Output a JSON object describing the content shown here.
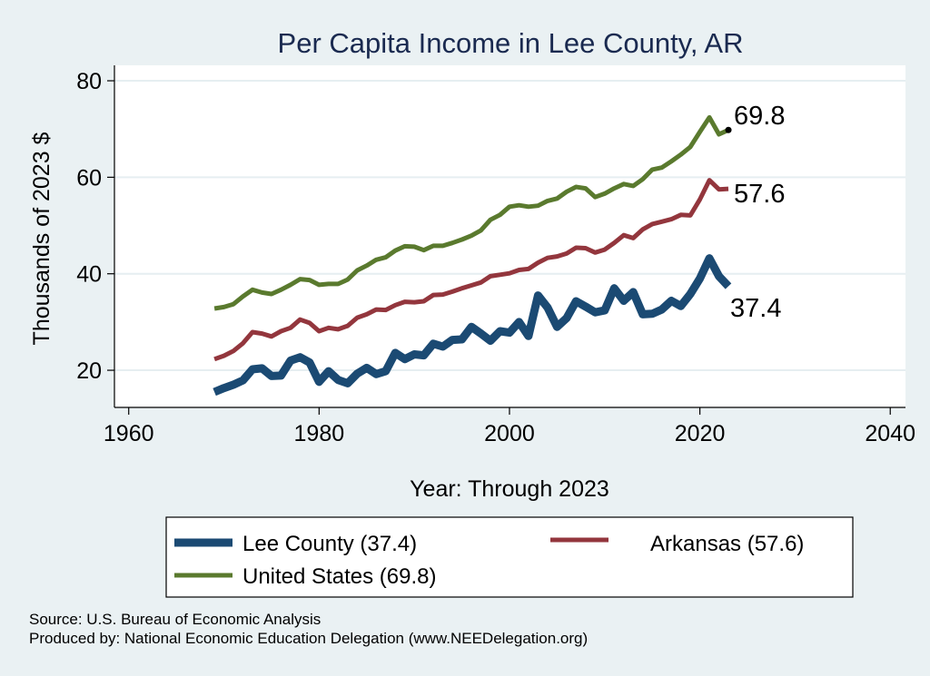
{
  "chart_data": {
    "type": "line",
    "title": "Per Capita Income in Lee County, AR",
    "xlabel": "Year: Through 2023",
    "ylabel": "Thousands of 2023 $",
    "xlim": [
      1958.5,
      2041.6
    ],
    "ylim": [
      12.3,
      83.2
    ],
    "xticks": [
      1960,
      1980,
      2000,
      2020,
      2040
    ],
    "yticks": [
      20,
      40,
      60,
      80
    ],
    "grid": "horizontal",
    "legend_position": "bottom",
    "x": [
      1969,
      1970,
      1971,
      1972,
      1973,
      1974,
      1975,
      1976,
      1977,
      1978,
      1979,
      1980,
      1981,
      1982,
      1983,
      1984,
      1985,
      1986,
      1987,
      1988,
      1989,
      1990,
      1991,
      1992,
      1993,
      1994,
      1995,
      1996,
      1997,
      1998,
      1999,
      2000,
      2001,
      2002,
      2003,
      2004,
      2005,
      2006,
      2007,
      2008,
      2009,
      2010,
      2011,
      2012,
      2013,
      2014,
      2015,
      2016,
      2017,
      2018,
      2019,
      2020,
      2021,
      2022,
      2023
    ],
    "series": [
      {
        "name": "Lee County",
        "legend_label": "Lee County (37.4)",
        "end_label": "37.4",
        "color": "#1b4a73",
        "values": [
          15.5,
          16.3,
          17.0,
          17.9,
          20.2,
          20.4,
          18.8,
          18.9,
          22.0,
          22.7,
          21.6,
          17.6,
          19.8,
          18.0,
          17.3,
          19.3,
          20.5,
          19.2,
          19.8,
          23.6,
          22.3,
          23.3,
          23.1,
          25.5,
          24.9,
          26.3,
          26.4,
          29.0,
          27.6,
          26.1,
          28.1,
          27.8,
          30.0,
          27.1,
          35.5,
          33.0,
          29.0,
          30.8,
          34.3,
          33.2,
          32.0,
          32.4,
          37.0,
          34.4,
          36.2,
          31.6,
          31.7,
          32.6,
          34.4,
          33.3,
          35.8,
          39.0,
          43.2,
          39.5,
          37.4
        ]
      },
      {
        "name": "Arkansas",
        "legend_label": "Arkansas (57.6)",
        "end_label": "57.6",
        "color": "#93363d",
        "values": [
          22.3,
          23.0,
          24.0,
          25.6,
          27.9,
          27.6,
          27.0,
          28.1,
          28.8,
          30.5,
          29.8,
          28.1,
          28.8,
          28.5,
          29.2,
          30.9,
          31.6,
          32.6,
          32.5,
          33.5,
          34.2,
          34.1,
          34.3,
          35.6,
          35.7,
          36.3,
          37.0,
          37.6,
          38.2,
          39.5,
          39.8,
          40.1,
          40.8,
          41.0,
          42.3,
          43.3,
          43.6,
          44.2,
          45.4,
          45.3,
          44.4,
          45.0,
          46.4,
          48.0,
          47.4,
          49.2,
          50.3,
          50.8,
          51.3,
          52.2,
          52.1,
          55.4,
          59.4,
          57.5,
          57.6
        ]
      },
      {
        "name": "United States",
        "legend_label": "United States (69.8)",
        "end_label": "69.8",
        "color": "#5a7a2e",
        "values": [
          32.8,
          33.1,
          33.7,
          35.3,
          36.7,
          36.1,
          35.8,
          36.7,
          37.7,
          38.9,
          38.7,
          37.7,
          37.9,
          37.9,
          38.8,
          40.7,
          41.7,
          42.9,
          43.4,
          44.8,
          45.7,
          45.6,
          44.9,
          45.8,
          45.8,
          46.4,
          47.1,
          47.9,
          49.0,
          51.2,
          52.2,
          53.9,
          54.2,
          53.9,
          54.1,
          55.1,
          55.6,
          57.0,
          58.0,
          57.7,
          55.9,
          56.6,
          57.7,
          58.6,
          58.2,
          59.6,
          61.6,
          62.0,
          63.3,
          64.7,
          66.3,
          69.4,
          72.4,
          68.9,
          69.8
        ]
      }
    ],
    "source": "Source: U.S. Bureau of Economic Analysis",
    "produced_by": "Produced by: National Economic Education Delegation (www.NEEDelegation.org)"
  }
}
